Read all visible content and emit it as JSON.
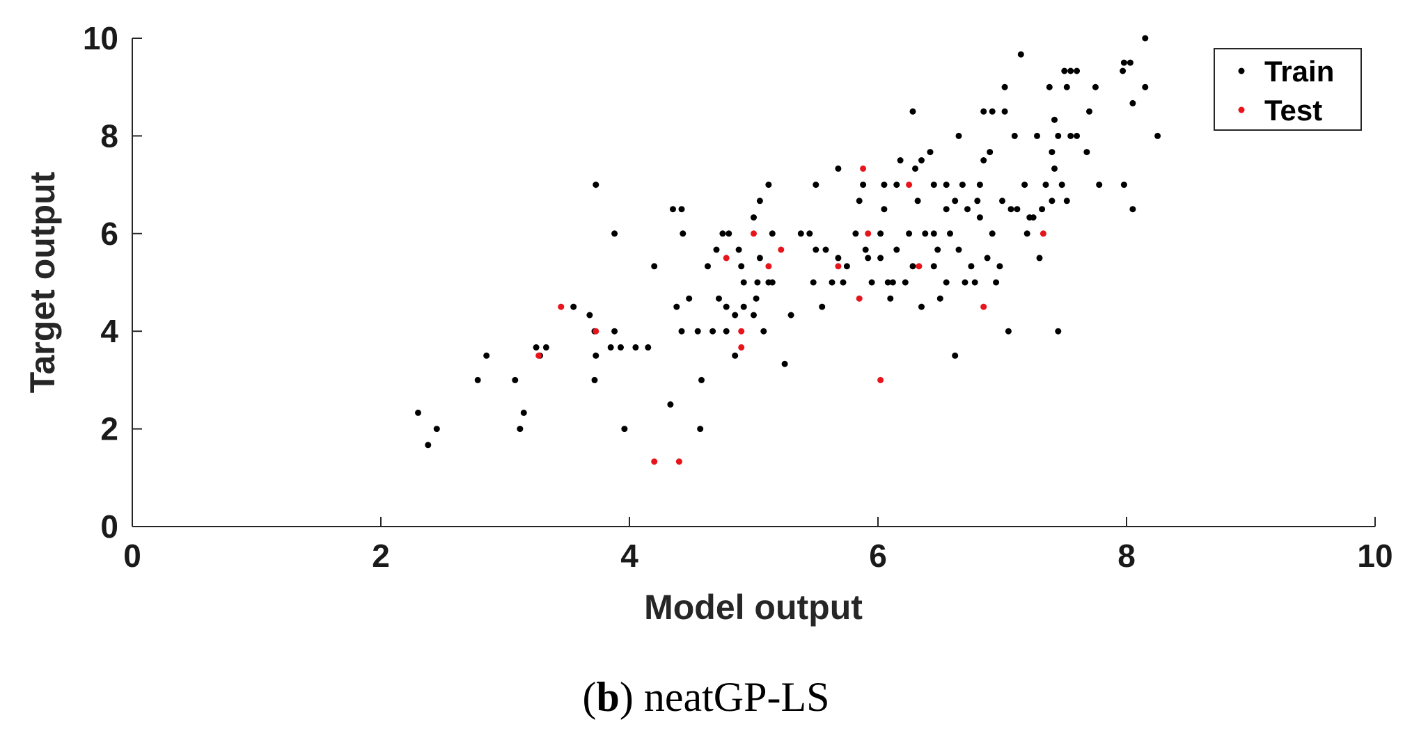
{
  "chart_data": {
    "type": "scatter",
    "xlabel": "Model output",
    "ylabel": "Target output",
    "xlim": [
      0,
      10
    ],
    "ylim": [
      0,
      10
    ],
    "xticks": [
      0,
      2,
      4,
      6,
      8,
      10
    ],
    "yticks": [
      0,
      2,
      4,
      6,
      8,
      10
    ],
    "grid": false,
    "legend_position": "top-right",
    "series": [
      {
        "name": "Train",
        "color": "#000000",
        "points": [
          [
            2.3,
            2.33
          ],
          [
            2.38,
            1.67
          ],
          [
            2.45,
            2.0
          ],
          [
            2.78,
            3.0
          ],
          [
            2.85,
            3.5
          ],
          [
            3.08,
            3.0
          ],
          [
            3.12,
            2.0
          ],
          [
            3.15,
            2.33
          ],
          [
            3.25,
            3.67
          ],
          [
            3.28,
            3.5
          ],
          [
            3.33,
            3.67
          ],
          [
            3.55,
            4.5
          ],
          [
            3.68,
            4.33
          ],
          [
            3.72,
            4.0
          ],
          [
            3.72,
            3.0
          ],
          [
            3.73,
            3.5
          ],
          [
            3.73,
            7.0
          ],
          [
            3.85,
            3.67
          ],
          [
            3.88,
            6.0
          ],
          [
            3.88,
            4.0
          ],
          [
            3.93,
            3.67
          ],
          [
            3.96,
            2.0
          ],
          [
            4.05,
            3.67
          ],
          [
            4.15,
            3.67
          ],
          [
            4.2,
            5.33
          ],
          [
            4.33,
            2.5
          ],
          [
            4.35,
            6.5
          ],
          [
            4.38,
            4.5
          ],
          [
            4.42,
            6.5
          ],
          [
            4.42,
            4.0
          ],
          [
            4.43,
            6.0
          ],
          [
            4.48,
            4.67
          ],
          [
            4.55,
            4.0
          ],
          [
            4.57,
            2.0
          ],
          [
            4.58,
            3.0
          ],
          [
            4.63,
            5.33
          ],
          [
            4.67,
            4.0
          ],
          [
            4.7,
            5.67
          ],
          [
            4.72,
            4.67
          ],
          [
            4.75,
            6.0
          ],
          [
            4.78,
            4.5
          ],
          [
            4.78,
            4.0
          ],
          [
            4.8,
            6.0
          ],
          [
            4.85,
            4.33
          ],
          [
            4.85,
            3.5
          ],
          [
            4.88,
            5.67
          ],
          [
            4.9,
            5.33
          ],
          [
            4.92,
            4.5
          ],
          [
            4.92,
            5.0
          ],
          [
            5.0,
            6.33
          ],
          [
            5.0,
            4.33
          ],
          [
            5.02,
            4.67
          ],
          [
            5.03,
            5.0
          ],
          [
            5.05,
            6.67
          ],
          [
            5.05,
            5.5
          ],
          [
            5.08,
            4.0
          ],
          [
            5.12,
            7.0
          ],
          [
            5.12,
            5.0
          ],
          [
            5.15,
            6.0
          ],
          [
            5.15,
            5.0
          ],
          [
            5.25,
            3.33
          ],
          [
            5.3,
            4.33
          ],
          [
            5.38,
            6.0
          ],
          [
            5.45,
            6.0
          ],
          [
            5.48,
            5.0
          ],
          [
            5.5,
            5.67
          ],
          [
            5.5,
            7.0
          ],
          [
            5.55,
            4.5
          ],
          [
            5.58,
            5.67
          ],
          [
            5.63,
            5.0
          ],
          [
            5.68,
            5.5
          ],
          [
            5.68,
            7.33
          ],
          [
            5.72,
            5.0
          ],
          [
            5.75,
            5.33
          ],
          [
            5.82,
            6.0
          ],
          [
            5.85,
            6.67
          ],
          [
            5.88,
            7.0
          ],
          [
            5.9,
            5.67
          ],
          [
            5.92,
            5.5
          ],
          [
            5.95,
            5.0
          ],
          [
            6.02,
            6.0
          ],
          [
            6.02,
            5.5
          ],
          [
            6.05,
            6.5
          ],
          [
            6.05,
            7.0
          ],
          [
            6.08,
            5.0
          ],
          [
            6.1,
            4.67
          ],
          [
            6.12,
            5.0
          ],
          [
            6.15,
            5.67
          ],
          [
            6.15,
            7.0
          ],
          [
            6.18,
            7.5
          ],
          [
            6.22,
            5.0
          ],
          [
            6.25,
            6.0
          ],
          [
            6.28,
            8.5
          ],
          [
            6.28,
            5.33
          ],
          [
            6.3,
            7.33
          ],
          [
            6.32,
            6.67
          ],
          [
            6.35,
            4.5
          ],
          [
            6.35,
            7.5
          ],
          [
            6.38,
            6.0
          ],
          [
            6.42,
            7.67
          ],
          [
            6.45,
            6.0
          ],
          [
            6.45,
            7.0
          ],
          [
            6.45,
            5.33
          ],
          [
            6.48,
            5.67
          ],
          [
            6.5,
            4.67
          ],
          [
            6.55,
            6.5
          ],
          [
            6.55,
            7.0
          ],
          [
            6.55,
            5.0
          ],
          [
            6.58,
            6.0
          ],
          [
            6.62,
            6.67
          ],
          [
            6.62,
            3.5
          ],
          [
            6.65,
            8.0
          ],
          [
            6.65,
            5.67
          ],
          [
            6.68,
            7.0
          ],
          [
            6.7,
            5.0
          ],
          [
            6.72,
            6.5
          ],
          [
            6.75,
            5.33
          ],
          [
            6.78,
            5.0
          ],
          [
            6.8,
            6.67
          ],
          [
            6.82,
            6.33
          ],
          [
            6.82,
            7.0
          ],
          [
            6.85,
            7.5
          ],
          [
            6.85,
            8.5
          ],
          [
            6.88,
            5.5
          ],
          [
            6.9,
            7.67
          ],
          [
            6.92,
            8.5
          ],
          [
            6.92,
            6.0
          ],
          [
            6.95,
            5.0
          ],
          [
            6.98,
            5.33
          ],
          [
            7.0,
            6.67
          ],
          [
            7.02,
            9.0
          ],
          [
            7.02,
            8.5
          ],
          [
            7.05,
            4.0
          ],
          [
            7.07,
            6.5
          ],
          [
            7.1,
            8.0
          ],
          [
            7.12,
            6.5
          ],
          [
            7.15,
            9.67
          ],
          [
            7.18,
            7.0
          ],
          [
            7.2,
            6.0
          ],
          [
            7.22,
            6.33
          ],
          [
            7.25,
            6.33
          ],
          [
            7.28,
            8.0
          ],
          [
            7.3,
            5.5
          ],
          [
            7.32,
            6.5
          ],
          [
            7.35,
            7.0
          ],
          [
            7.38,
            9.0
          ],
          [
            7.4,
            6.67
          ],
          [
            7.4,
            7.67
          ],
          [
            7.42,
            8.33
          ],
          [
            7.42,
            7.33
          ],
          [
            7.45,
            8.0
          ],
          [
            7.45,
            4.0
          ],
          [
            7.48,
            7.0
          ],
          [
            7.5,
            9.33
          ],
          [
            7.52,
            9.0
          ],
          [
            7.52,
            6.67
          ],
          [
            7.55,
            9.33
          ],
          [
            7.55,
            8.0
          ],
          [
            7.6,
            9.33
          ],
          [
            7.6,
            8.0
          ],
          [
            7.68,
            7.67
          ],
          [
            7.7,
            8.5
          ],
          [
            7.75,
            9.0
          ],
          [
            7.78,
            7.0
          ],
          [
            7.97,
            9.33
          ],
          [
            7.98,
            7.0
          ],
          [
            7.98,
            9.5
          ],
          [
            8.03,
            9.5
          ],
          [
            8.05,
            6.5
          ],
          [
            8.05,
            8.67
          ],
          [
            8.15,
            10.0
          ],
          [
            8.15,
            9.0
          ],
          [
            8.25,
            8.0
          ]
        ]
      },
      {
        "name": "Test",
        "color": "#e8141b",
        "points": [
          [
            3.27,
            3.5
          ],
          [
            3.45,
            4.5
          ],
          [
            3.73,
            4.0
          ],
          [
            4.2,
            1.33
          ],
          [
            4.4,
            1.33
          ],
          [
            4.78,
            5.5
          ],
          [
            4.9,
            3.67
          ],
          [
            4.9,
            4.0
          ],
          [
            5.0,
            6.0
          ],
          [
            5.12,
            5.33
          ],
          [
            5.22,
            5.67
          ],
          [
            5.68,
            5.33
          ],
          [
            5.85,
            4.67
          ],
          [
            5.88,
            7.33
          ],
          [
            5.92,
            6.0
          ],
          [
            6.02,
            3.0
          ],
          [
            6.25,
            7.0
          ],
          [
            6.33,
            5.33
          ],
          [
            6.85,
            4.5
          ],
          [
            7.33,
            6.0
          ]
        ]
      }
    ]
  },
  "caption": {
    "letter": "b",
    "open": "(",
    "close": ")",
    "text": " neatGP-LS"
  }
}
